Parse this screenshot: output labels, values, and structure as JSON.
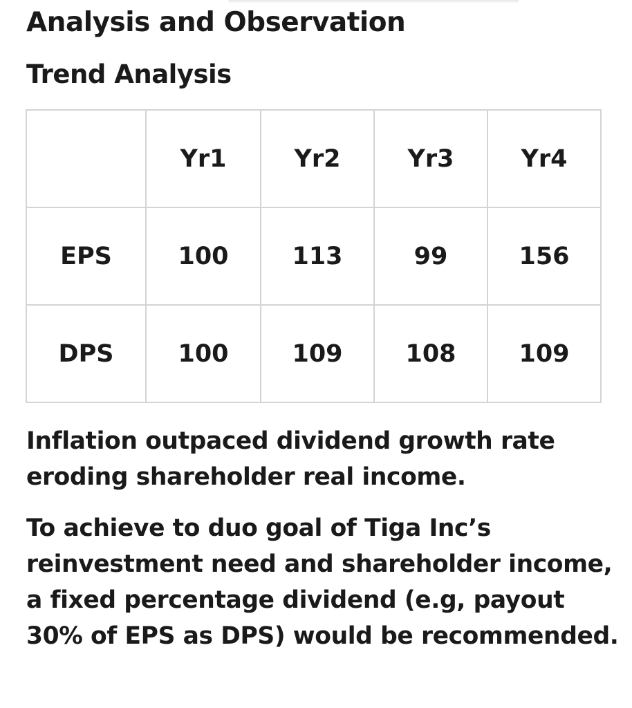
{
  "header": {
    "title": "Analysis and Observation",
    "subtitle": "Trend Analysis"
  },
  "table": {
    "columns": [
      "",
      "Yr1",
      "Yr2",
      "Yr3",
      "Yr4"
    ],
    "rows": [
      {
        "label": "EPS",
        "values": [
          "100",
          "113",
          "99",
          "156"
        ]
      },
      {
        "label": "DPS",
        "values": [
          "100",
          "109",
          "108",
          "109"
        ]
      }
    ]
  },
  "body": {
    "observation": "Inflation outpaced dividend growth rate eroding shareholder real income.",
    "recommendation": "To achieve to duo goal of Tiga Inc’s reinvestment need and shareholder income, a fixed percentage dividend (e.g, payout 30% of EPS as DPS) would be recommended."
  }
}
